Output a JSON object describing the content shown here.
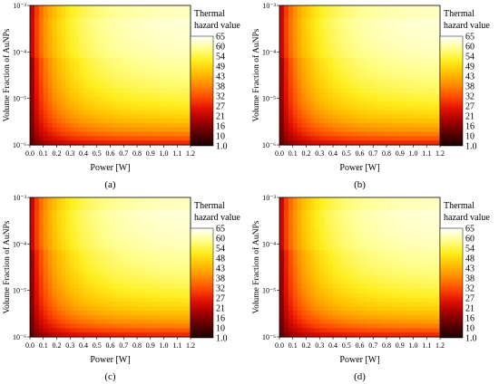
{
  "chart_data": [
    {
      "type": "heatmap",
      "panel_label": "(a)",
      "xlabel": "Power [W]",
      "ylabel": "Volume Fraction of AuNPs",
      "xlim": [
        0.0,
        1.2
      ],
      "ylim": [
        1e-06,
        0.001
      ],
      "y_scale": "log",
      "x_ticks": [
        "0.0",
        "0.1",
        "0.2",
        "0.3",
        "0.4",
        "0.5",
        "0.6",
        "0.7",
        "0.8",
        "0.9",
        "1.0",
        "1.1",
        "1.2"
      ],
      "y_ticks": [
        "10⁻⁶",
        "10⁻⁵",
        "10⁻⁴",
        "10⁻³"
      ],
      "colorbar": {
        "title_line1": "Thermal",
        "title_line2": "hazard value",
        "ticks": [
          "1.0",
          "10",
          "16",
          "21",
          "27",
          "32",
          "38",
          "43",
          "49",
          "54",
          "60",
          "65"
        ],
        "min": 1.0,
        "max": 65
      },
      "colormap": [
        "#1a0000",
        "#5a0000",
        "#a00000",
        "#e01000",
        "#ff4a00",
        "#ff8a00",
        "#ffc000",
        "#ffee20",
        "#ffff90",
        "#ffffff"
      ]
    },
    {
      "type": "heatmap",
      "panel_label": "(b)",
      "xlabel": "Power [W]",
      "ylabel": "Volume Fraction of AuNPs",
      "xlim": [
        0.0,
        1.2
      ],
      "ylim": [
        1e-06,
        0.001
      ],
      "y_scale": "log",
      "x_ticks": [
        "0.0",
        "0.1",
        "0.2",
        "0.3",
        "0.4",
        "0.5",
        "0.6",
        "0.7",
        "0.8",
        "0.9",
        "1.0",
        "1.1",
        "1.2"
      ],
      "y_ticks": [
        "10⁻⁶",
        "10⁻⁵",
        "10⁻⁴",
        "10⁻³"
      ],
      "colorbar": {
        "title_line1": "Thermal",
        "title_line2": "hazard value",
        "ticks": [
          "1.0",
          "10",
          "16",
          "21",
          "27",
          "32",
          "38",
          "43",
          "49",
          "54",
          "60",
          "65"
        ],
        "min": 1.0,
        "max": 65
      },
      "colormap": [
        "#1a0000",
        "#5a0000",
        "#a00000",
        "#e01000",
        "#ff4a00",
        "#ff8a00",
        "#ffc000",
        "#ffee20",
        "#ffff90",
        "#ffffff"
      ]
    },
    {
      "type": "heatmap",
      "panel_label": "(c)",
      "xlabel": "Power [W]",
      "ylabel": "Volume Fraction of AuNPs",
      "xlim": [
        0.0,
        1.2
      ],
      "ylim": [
        1e-06,
        0.001
      ],
      "y_scale": "log",
      "x_ticks": [
        "0.0",
        "0.1",
        "0.2",
        "0.3",
        "0.4",
        "0.5",
        "0.6",
        "0.7",
        "0.8",
        "0.9",
        "1.0",
        "1.1",
        "1.2"
      ],
      "y_ticks": [
        "10⁻⁶",
        "10⁻⁵",
        "10⁻⁴",
        "10⁻³"
      ],
      "colorbar": {
        "title_line1": "Thermal",
        "title_line2": "hazard value",
        "ticks": [
          "1.0",
          "10",
          "16",
          "21",
          "27",
          "32",
          "38",
          "43",
          "48",
          "54",
          "60",
          "65"
        ],
        "min": 1.0,
        "max": 65
      },
      "colormap": [
        "#1a0000",
        "#5a0000",
        "#a00000",
        "#e01000",
        "#ff4a00",
        "#ff8a00",
        "#ffc000",
        "#ffee20",
        "#ffff90",
        "#ffffff"
      ]
    },
    {
      "type": "heatmap",
      "panel_label": "(d)",
      "xlabel": "Power [W]",
      "ylabel": "Volume Fraction of AuNPs",
      "xlim": [
        0.0,
        1.2
      ],
      "ylim": [
        1e-06,
        0.001
      ],
      "y_scale": "log",
      "x_ticks": [
        "0.0",
        "0.1",
        "0.2",
        "0.3",
        "0.4",
        "0.5",
        "0.6",
        "0.7",
        "0.8",
        "0.9",
        "1.0",
        "1.1",
        "1.2"
      ],
      "y_ticks": [
        "10⁻⁶",
        "10⁻⁵",
        "10⁻⁴",
        "10⁻³"
      ],
      "colorbar": {
        "title_line1": "Thermal",
        "title_line2": "hazard value",
        "ticks": [
          "1.0",
          "10",
          "16",
          "21",
          "27",
          "32",
          "38",
          "43",
          "48",
          "54",
          "60",
          "65"
        ],
        "min": 1.0,
        "max": 65
      },
      "colormap": [
        "#1a0000",
        "#5a0000",
        "#a00000",
        "#e01000",
        "#ff4a00",
        "#ff8a00",
        "#ffc000",
        "#ffee20",
        "#ffff90",
        "#ffffff"
      ]
    }
  ]
}
